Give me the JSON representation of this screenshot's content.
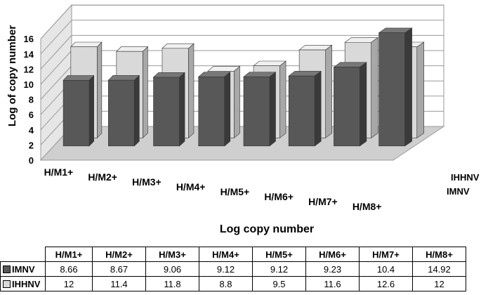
{
  "chart_data": {
    "type": "bar",
    "style": "3d-clustered-depth",
    "xlabel": "Log copy number",
    "ylabel": "Log of copy number",
    "ylim": [
      0,
      16
    ],
    "y_ticks": [
      "0",
      "2",
      "4",
      "6",
      "8",
      "10",
      "12",
      "14",
      "16"
    ],
    "grid": true,
    "categories": [
      "H/M1+",
      "H/M2+",
      "H/M3+",
      "H/M4+",
      "H/M5+",
      "H/M6+",
      "H/M7+",
      "H/M8+"
    ],
    "depth_labels": [
      "IHHNV",
      "IMNV"
    ],
    "series": [
      {
        "name": "IMNV",
        "values": [
          8.66,
          8.67,
          9.06,
          9.12,
          9.12,
          9.23,
          10.4,
          14.92
        ],
        "color": "#585858"
      },
      {
        "name": "IHHNV",
        "values": [
          12,
          11.4,
          11.8,
          8.8,
          9.5,
          11.6,
          12.6,
          12
        ],
        "color": "#d9d9d9"
      }
    ]
  },
  "table": {
    "columns": [
      "H/M1+",
      "H/M2+",
      "H/M3+",
      "H/M4+",
      "H/M5+",
      "H/M6+",
      "H/M7+",
      "H/M8+"
    ],
    "rows": [
      {
        "label": "IMNV",
        "cells": [
          "8.66",
          "8.67",
          "9.06",
          "9.12",
          "9.12",
          "9.23",
          "10.4",
          "14.92"
        ]
      },
      {
        "label": "IHHNV",
        "cells": [
          "12",
          "11.4",
          "11.8",
          "8.8",
          "9.5",
          "11.6",
          "12.6",
          "12"
        ]
      }
    ]
  }
}
